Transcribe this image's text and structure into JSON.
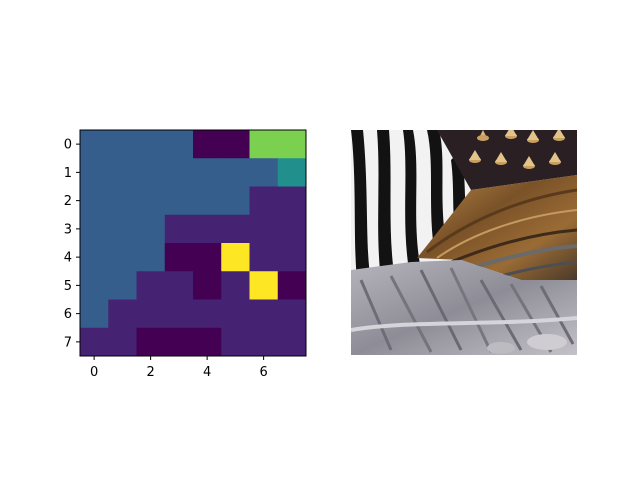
{
  "chart_data": [
    {
      "type": "heatmap",
      "title": "",
      "xlabel": "",
      "ylabel": "",
      "rows": 8,
      "cols": 8,
      "xlim": [
        -0.5,
        7.5
      ],
      "ylim": [
        7.5,
        -0.5
      ],
      "x_ticks": [
        0,
        2,
        4,
        6
      ],
      "x_tick_labels": [
        "0",
        "2",
        "4",
        "6"
      ],
      "y_ticks": [
        0,
        1,
        2,
        3,
        4,
        5,
        6,
        7
      ],
      "y_tick_labels": [
        "0",
        "1",
        "2",
        "3",
        "4",
        "5",
        "6",
        "7"
      ],
      "colormap": "viridis",
      "vmin": 0,
      "vmax": 10,
      "grid": false,
      "values": [
        [
          3,
          3,
          3,
          3,
          0,
          0,
          8,
          8
        ],
        [
          3,
          3,
          3,
          3,
          3,
          3,
          3,
          5
        ],
        [
          3,
          3,
          3,
          3,
          3,
          3,
          1,
          1
        ],
        [
          3,
          3,
          3,
          1,
          1,
          1,
          1,
          1
        ],
        [
          3,
          3,
          3,
          0,
          0,
          10,
          1,
          1
        ],
        [
          3,
          3,
          1,
          1,
          0,
          1,
          10,
          0
        ],
        [
          3,
          1,
          1,
          1,
          1,
          1,
          1,
          1
        ],
        [
          1,
          1,
          0,
          0,
          0,
          1,
          1,
          1
        ]
      ]
    },
    {
      "type": "image",
      "title": "",
      "content": "texture collage: zebra stripes, metal studs, wood, rock"
    }
  ],
  "colors": {
    "c0": "#440154",
    "c1": "#472d7b",
    "c3": "#3b528b",
    "c5": "#2c728e",
    "c8": "#a0da39",
    "c10": "#fde725"
  }
}
